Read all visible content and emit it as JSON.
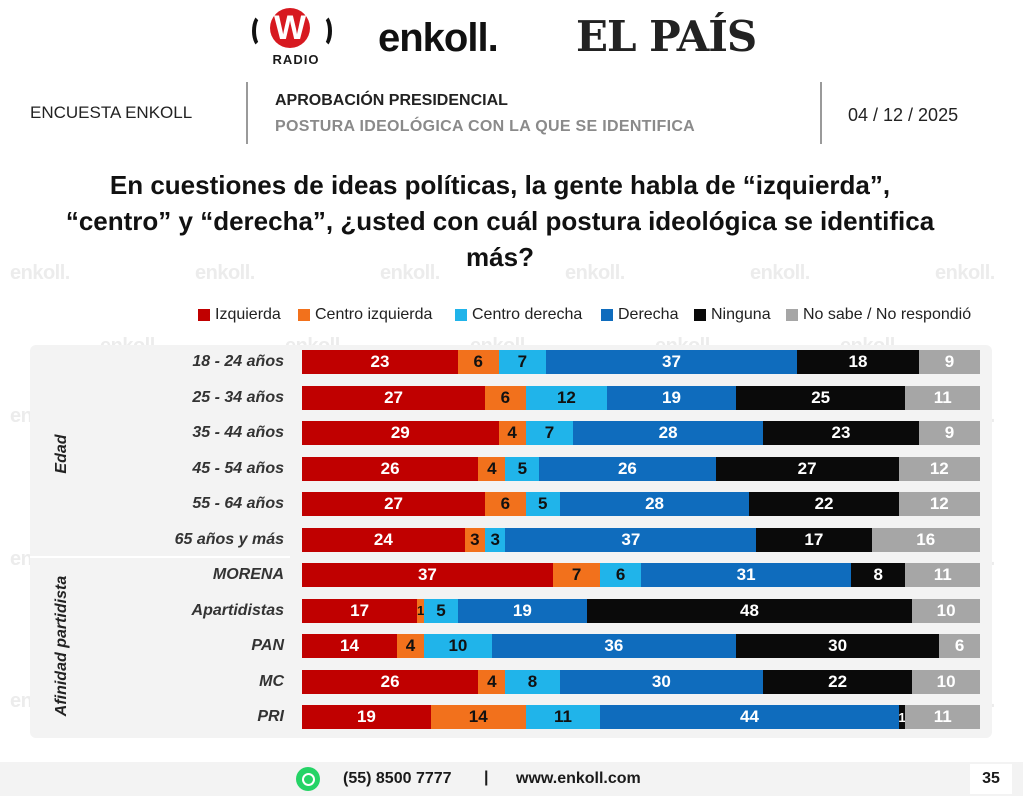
{
  "logos": {
    "wradio_letter": "W",
    "wradio_text": "RADIO",
    "enkoll": "enkoll.",
    "elpais": "EL PAÍS",
    "watermark": "enkoll."
  },
  "header": {
    "left": "ENCUESTA ENKOLL",
    "title": "APROBACIÓN PRESIDENCIAL",
    "subtitle": "POSTURA IDEOLÓGICA CON LA QUE SE IDENTIFICA",
    "date": "04 / 12 / 2025"
  },
  "question": "En cuestiones de ideas políticas, la gente habla de “izquierda”, “centro” y “derecha”, ¿usted con cuál postura ideológica se identifica más?",
  "footer": {
    "phone": "(55) 8500 7777",
    "separator": "|",
    "website": "www.enkoll.com",
    "page": "35",
    "whatsapp_icon": "whatsapp-icon"
  },
  "chart_data": {
    "type": "bar",
    "stacked": true,
    "orientation": "horizontal",
    "legend_position": "top",
    "xlim": [
      0,
      100
    ],
    "groups": [
      {
        "label": "Edad",
        "rows": [
          "18 - 24 años",
          "25 - 34 años",
          "35 - 44 años",
          "45 - 54 años",
          "55 - 64 años",
          "65 años y más"
        ]
      },
      {
        "label": "Afinidad partidista",
        "rows": [
          "MORENA",
          "Apartidistas",
          "PAN",
          "MC",
          "PRI"
        ]
      }
    ],
    "categories": [
      "18 - 24 años",
      "25 - 34 años",
      "35 - 44 años",
      "45 - 54 años",
      "55 - 64 años",
      "65 años y más",
      "MORENA",
      "Apartidistas",
      "PAN",
      "MC",
      "PRI"
    ],
    "series": [
      {
        "name": "Izquierda",
        "color": "#c00000",
        "values": [
          23,
          27,
          29,
          26,
          27,
          24,
          37,
          17,
          14,
          26,
          19
        ]
      },
      {
        "name": "Centro izquierda",
        "color": "#f2711c",
        "values": [
          6,
          6,
          4,
          4,
          6,
          3,
          7,
          1,
          4,
          4,
          14
        ]
      },
      {
        "name": "Centro derecha",
        "color": "#20b4ea",
        "values": [
          7,
          12,
          7,
          5,
          5,
          3,
          6,
          5,
          10,
          8,
          11
        ]
      },
      {
        "name": "Derecha",
        "color": "#0f6cbd",
        "values": [
          37,
          19,
          28,
          26,
          28,
          37,
          31,
          19,
          36,
          30,
          44
        ]
      },
      {
        "name": "Ninguna",
        "color": "#0a0a0a",
        "values": [
          18,
          25,
          23,
          27,
          22,
          17,
          8,
          48,
          30,
          22,
          1
        ]
      },
      {
        "name": "No sabe / No respondió",
        "color": "#a6a6a6",
        "values": [
          9,
          11,
          9,
          12,
          12,
          16,
          11,
          10,
          6,
          10,
          11
        ]
      }
    ]
  }
}
